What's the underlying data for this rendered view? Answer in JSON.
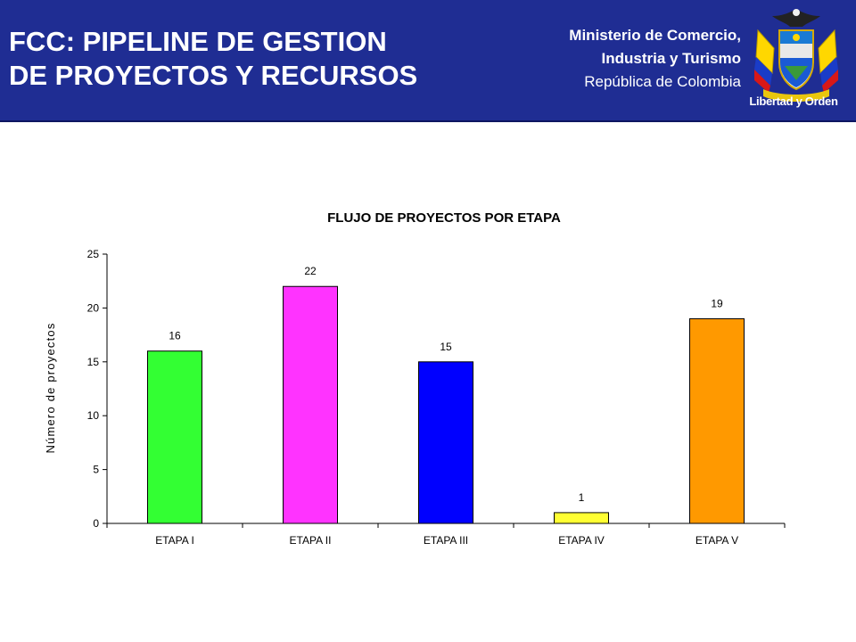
{
  "header": {
    "title_line1": "FCC: PIPELINE DE GESTION",
    "title_line2": "DE PROYECTOS Y RECURSOS",
    "ministry_line1": "Ministerio de Comercio,",
    "ministry_line2": "Industria y Turismo",
    "ministry_line3": "República de Colombia",
    "seal_motto": "Libertad y Orden",
    "background_color": "#1f2d93"
  },
  "chart_data": {
    "type": "bar",
    "title": "FLUJO DE PROYECTOS POR ETAPA",
    "xlabel": "",
    "ylabel": "Número de proyectos",
    "categories": [
      "ETAPA I",
      "ETAPA II",
      "ETAPA III",
      "ETAPA IV",
      "ETAPA V"
    ],
    "values": [
      16,
      22,
      15,
      1,
      19
    ],
    "colors": [
      "#33ff33",
      "#ff33ff",
      "#0000ff",
      "#ffff33",
      "#ff9900"
    ],
    "ylim": [
      0,
      25
    ],
    "yticks": [
      0,
      5,
      10,
      15,
      20,
      25
    ],
    "data_labels": true,
    "grid": false,
    "legend": "none"
  }
}
